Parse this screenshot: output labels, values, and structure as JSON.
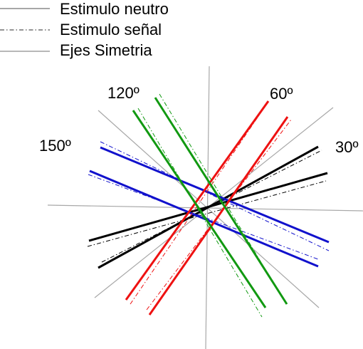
{
  "legend": {
    "items": [
      {
        "label": "Estimulo neutro",
        "style": "solid",
        "color": "#8a8a8a"
      },
      {
        "label": "Estimulo señal",
        "style": "dashdot",
        "color": "#666666"
      },
      {
        "label": "Ejes Simetria",
        "style": "solid",
        "color": "#a0a0a0"
      }
    ]
  },
  "angle_labels": [
    "30º",
    "60º",
    "120º",
    "150º"
  ],
  "colors": {
    "axis": "#a8a8a8",
    "orient_30": "#000000",
    "orient_60": "#ee1111",
    "orient_120": "#119911",
    "orient_150": "#1111cc"
  }
}
